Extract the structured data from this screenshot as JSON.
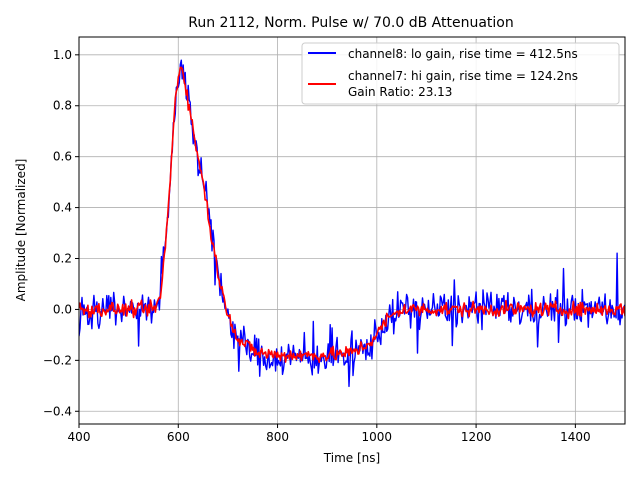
{
  "chart_data": {
    "type": "line",
    "title": "Run 2112, Norm. Pulse w/ 70.0 dB Attenuation",
    "xlabel": "Time [ns]",
    "ylabel": "Amplitude [Normalized]",
    "xlim": [
      400,
      1500
    ],
    "ylim": [
      -0.45,
      1.07
    ],
    "xticks": [
      400,
      600,
      800,
      1000,
      1200,
      1400
    ],
    "yticks": [
      -0.4,
      -0.2,
      0.0,
      0.2,
      0.4,
      0.6,
      0.8,
      1.0
    ],
    "xtick_labels": [
      "400",
      "600",
      "800",
      "1000",
      "1200",
      "1400"
    ],
    "ytick_labels": [
      "−0.4",
      "−0.2",
      "0.0",
      "0.2",
      "0.4",
      "0.6",
      "0.8",
      "1.0"
    ],
    "grid": true,
    "legend_position": "top-right",
    "series": [
      {
        "name": "channel8: lo gain, rise time = 412.5ns",
        "color": "#0000ff",
        "noise": 0.05,
        "x": [
          400,
          550,
          565,
          580,
          595,
          605,
          615,
          630,
          650,
          670,
          690,
          720,
          760,
          800,
          850,
          900,
          950,
          980,
          1000,
          1020,
          1050,
          1100,
          1200,
          1300,
          1400,
          1500
        ],
        "y": [
          0.0,
          0.0,
          0.05,
          0.4,
          0.85,
          0.98,
          0.88,
          0.7,
          0.5,
          0.25,
          0.05,
          -0.12,
          -0.18,
          -0.19,
          -0.19,
          -0.19,
          -0.18,
          -0.15,
          -0.1,
          -0.04,
          0.0,
          0.0,
          0.0,
          0.0,
          0.0,
          0.0
        ]
      },
      {
        "name": "channel7: hi gain, rise time = 124.2ns",
        "color": "#ff0000",
        "noise": 0.02,
        "x": [
          400,
          550,
          565,
          580,
          595,
          605,
          615,
          630,
          650,
          670,
          690,
          720,
          760,
          800,
          850,
          900,
          950,
          980,
          1000,
          1020,
          1050,
          1100,
          1200,
          1300,
          1400,
          1500
        ],
        "y": [
          0.0,
          0.0,
          0.05,
          0.4,
          0.85,
          0.97,
          0.88,
          0.7,
          0.5,
          0.25,
          0.05,
          -0.12,
          -0.17,
          -0.18,
          -0.18,
          -0.18,
          -0.17,
          -0.14,
          -0.1,
          -0.04,
          0.0,
          0.0,
          0.0,
          0.0,
          0.0,
          0.0
        ]
      }
    ],
    "legend_extra": "Gain Ratio: 23.13"
  },
  "colors": {
    "grid": "#b0b0b0",
    "axis": "#000000",
    "legend_border": "#cccccc"
  }
}
